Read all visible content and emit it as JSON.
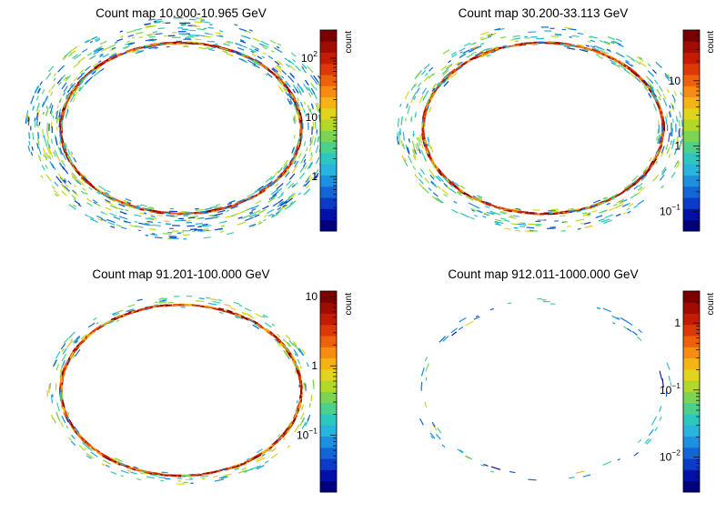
{
  "figure": {
    "colormap": [
      "#00007f",
      "#0010a8",
      "#0a3cc8",
      "#1466d6",
      "#1e90e0",
      "#28b4dc",
      "#2cc8c0",
      "#4cd08c",
      "#7cd452",
      "#b4d828",
      "#e0d41c",
      "#f6b414",
      "#f68c10",
      "#ee600c",
      "#dc3808",
      "#c41c04",
      "#a00c02",
      "#7a0000"
    ]
  },
  "chart_data": [
    {
      "type": "heatmap",
      "title": "Count map 10.000-10.965 GeV",
      "colorbar": {
        "label": "count",
        "scale": "log",
        "range": [
          0.12,
          300
        ],
        "ticks": [
          {
            "value": 1,
            "base": "1",
            "exp": ""
          },
          {
            "value": 10,
            "base": "10",
            "exp": ""
          },
          {
            "value": 100,
            "base": "10",
            "exp": "2"
          }
        ]
      },
      "ring": {
        "fraction_of_sky_covered": "outer rim only",
        "inner_band_level": 300,
        "scatter_level": 0.3
      }
    },
    {
      "type": "heatmap",
      "title": "Count map 30.200-33.113 GeV",
      "colorbar": {
        "label": "count",
        "scale": "log",
        "range": [
          0.05,
          60
        ],
        "ticks": [
          {
            "value": 0.1,
            "base": "10",
            "exp": "−1"
          },
          {
            "value": 1,
            "base": "1",
            "exp": ""
          },
          {
            "value": 10,
            "base": "10",
            "exp": ""
          }
        ]
      },
      "ring": {
        "inner_band_level": 60,
        "scatter_level": 0.15
      }
    },
    {
      "type": "heatmap",
      "title": "Count map 91.201-100.000 GeV",
      "colorbar": {
        "label": "count",
        "scale": "log",
        "range": [
          0.015,
          12
        ],
        "ticks": [
          {
            "value": 0.1,
            "base": "10",
            "exp": "−1"
          },
          {
            "value": 1,
            "base": "1",
            "exp": ""
          },
          {
            "value": 10,
            "base": "10",
            "exp": ""
          }
        ]
      },
      "ring": {
        "inner_band_level": 12,
        "scatter_level": 0.05
      }
    },
    {
      "type": "heatmap",
      "title": "Count map 912.011-1000.000 GeV",
      "colorbar": {
        "label": "count",
        "scale": "log",
        "range": [
          0.003,
          3
        ],
        "ticks": [
          {
            "value": 0.01,
            "base": "10",
            "exp": "−2"
          },
          {
            "value": 0.1,
            "base": "10",
            "exp": "−1"
          },
          {
            "value": 1,
            "base": "1",
            "exp": ""
          }
        ]
      },
      "ring": {
        "inner_band_level": 0.3,
        "scatter_level": 0.01
      }
    }
  ]
}
